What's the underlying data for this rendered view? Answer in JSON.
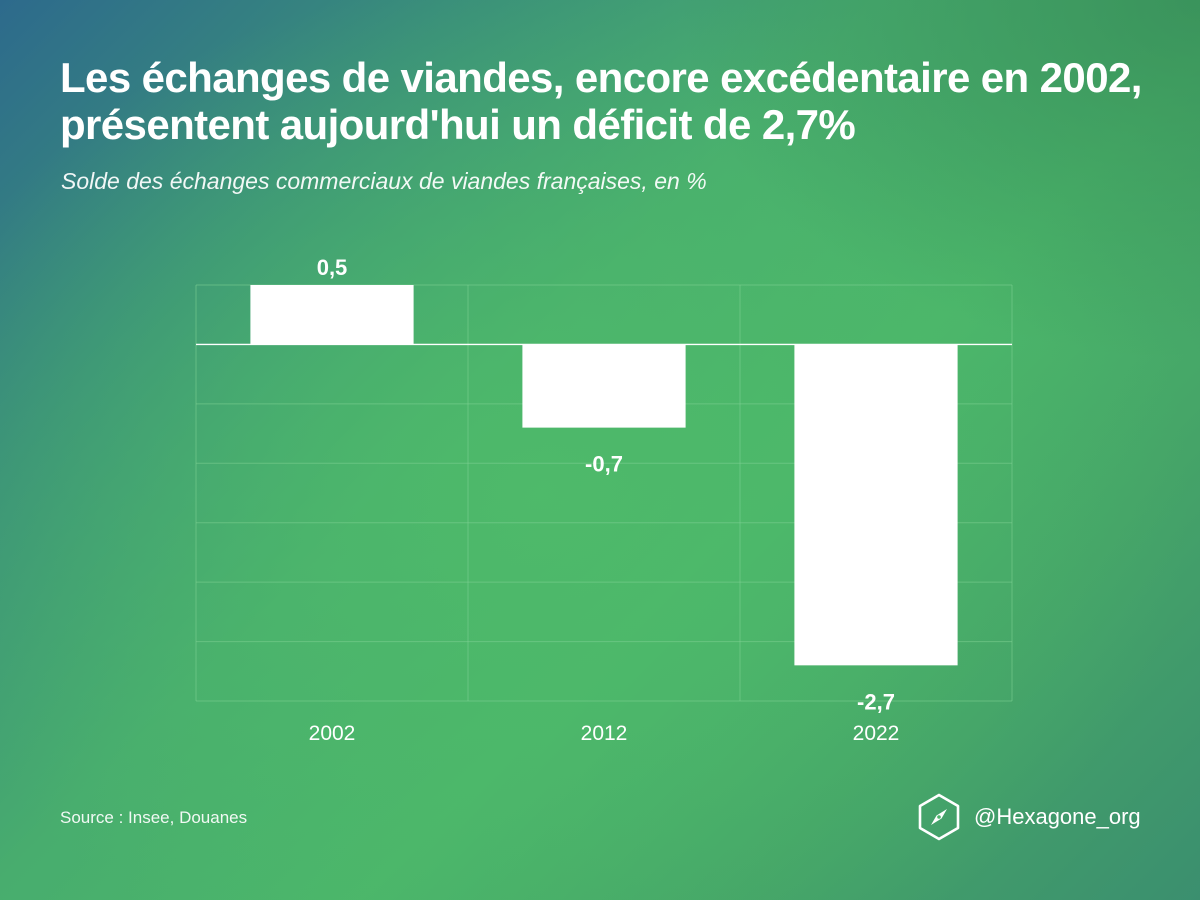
{
  "title": "Les échanges de viandes, encore excédentaire en 2002, présentent aujourd'hui un déficit de 2,7%",
  "subtitle": "Solde des échanges commerciaux de viandes françaises, en %",
  "source": "Source :  Insee, Douanes",
  "brand": {
    "handle": "@Hexagone_org",
    "icon": "hexagon-compass-icon"
  },
  "colors": {
    "bar": "#ffffff",
    "grid": "#7fd193",
    "zero_line": "#ffffff"
  },
  "chart_data": {
    "type": "bar",
    "categories": [
      "2002",
      "2012",
      "2022"
    ],
    "values": [
      0.5,
      -0.7,
      -2.7
    ],
    "value_labels": [
      "0,5",
      "-0,7",
      "-2,7"
    ],
    "title": "Les échanges de viandes, encore excédentaire en 2002, présentent aujourd'hui un déficit de 2,7%",
    "subtitle": "Solde des échanges commerciaux de viandes françaises, en %",
    "xlabel": "",
    "ylabel": "",
    "ylim": [
      -3.0,
      0.5
    ],
    "grid": true,
    "legend": "none"
  }
}
